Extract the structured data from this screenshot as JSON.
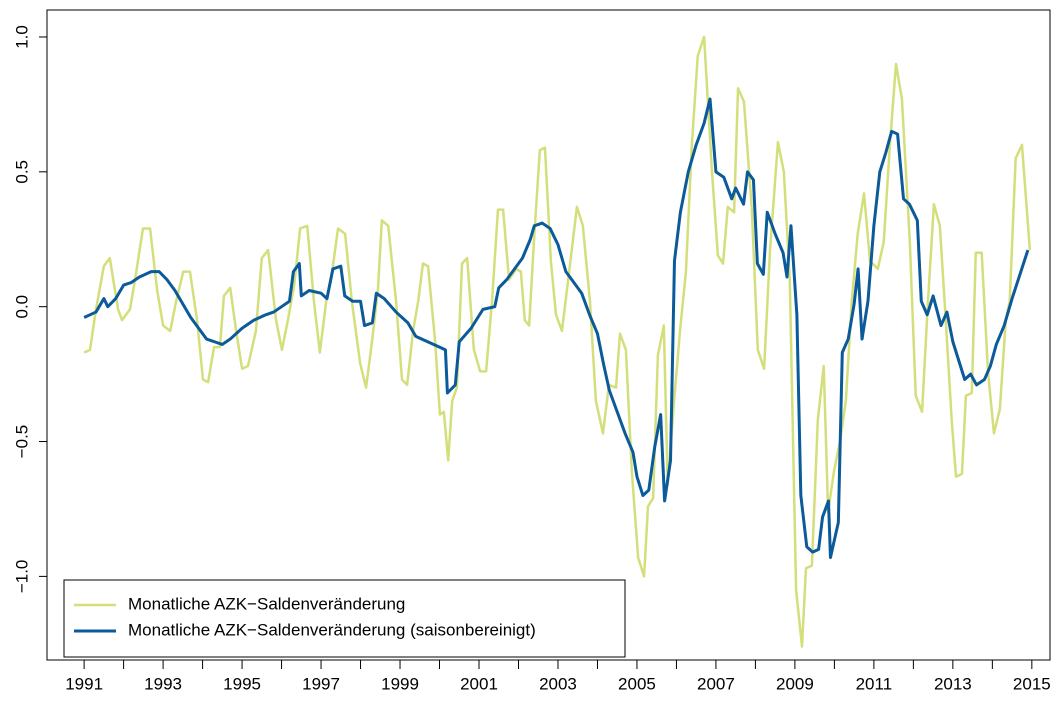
{
  "chart_data": {
    "type": "line",
    "xlim": [
      1990.06,
      2015.46
    ],
    "ylim": [
      -1.31,
      1.1
    ],
    "xticks": [
      1991,
      1993,
      1995,
      1997,
      1999,
      2001,
      2003,
      2005,
      2007,
      2009,
      2011,
      2013,
      2015
    ],
    "x_minor_ticks": [
      1992,
      1994,
      1996,
      1998,
      2000,
      2002,
      2004,
      2006,
      2008,
      2010,
      2012,
      2014
    ],
    "yticks": [
      {
        "value": -1,
        "label": "−1.0"
      },
      {
        "value": -0.5,
        "label": "−0.5"
      },
      {
        "value": 0,
        "label": "0.0"
      },
      {
        "value": 0.5,
        "label": "0.5"
      },
      {
        "value": 1,
        "label": "1.0"
      }
    ],
    "grid": false,
    "legend": "bottomleft",
    "series": [
      {
        "name": "Monatliche AZK−Saldenveränderung",
        "color": "#d4df7c",
        "x": [
          1991.0,
          1991.15,
          1991.3,
          1991.5,
          1991.65,
          1991.86,
          1991.96,
          1992.16,
          1992.29,
          1992.49,
          1992.67,
          1992.85,
          1993.0,
          1993.18,
          1993.33,
          1993.51,
          1993.68,
          1993.86,
          1994.01,
          1994.14,
          1994.29,
          1994.44,
          1994.54,
          1994.7,
          1994.85,
          1995.0,
          1995.15,
          1995.35,
          1995.5,
          1995.66,
          1995.86,
          1996.01,
          1996.16,
          1996.32,
          1996.47,
          1996.65,
          1996.82,
          1996.97,
          1997.13,
          1997.28,
          1997.43,
          1997.61,
          1997.78,
          1997.99,
          1998.14,
          1998.29,
          1998.44,
          1998.54,
          1998.7,
          1998.9,
          1999.05,
          1999.18,
          1999.33,
          1999.46,
          1999.58,
          1999.71,
          1999.89,
          2000.01,
          2000.11,
          2000.22,
          2000.32,
          2000.44,
          2000.57,
          2000.7,
          2000.87,
          2001.03,
          2001.18,
          2001.33,
          2001.48,
          2001.61,
          2001.76,
          2001.94,
          2002.06,
          2002.16,
          2002.27,
          2002.39,
          2002.54,
          2002.67,
          2002.82,
          2002.95,
          2003.1,
          2003.25,
          2003.48,
          2003.63,
          2003.81,
          2003.96,
          2004.14,
          2004.29,
          2004.47,
          2004.57,
          2004.72,
          2004.87,
          2005.03,
          2005.18,
          2005.28,
          2005.41,
          2005.53,
          2005.68,
          2005.78,
          2005.94,
          2006.09,
          2006.24,
          2006.39,
          2006.54,
          2006.7,
          2006.9,
          2007.05,
          2007.18,
          2007.3,
          2007.46,
          2007.56,
          2007.71,
          2007.91,
          2008.06,
          2008.22,
          2008.37,
          2008.57,
          2008.72,
          2008.87,
          2009.03,
          2009.18,
          2009.28,
          2009.43,
          2009.58,
          2009.73,
          2009.84,
          2009.99,
          2010.14,
          2010.29,
          2010.44,
          2010.59,
          2010.75,
          2010.9,
          2011.1,
          2011.25,
          2011.41,
          2011.56,
          2011.71,
          2011.91,
          2012.06,
          2012.22,
          2012.37,
          2012.52,
          2012.67,
          2012.82,
          2012.97,
          2013.08,
          2013.23,
          2013.33,
          2013.48,
          2013.58,
          2013.73,
          2013.89,
          2014.04,
          2014.19,
          2014.34,
          2014.44,
          2014.59,
          2014.75,
          2014.95
        ],
        "values": [
          -0.17,
          -0.16,
          -0.01,
          0.15,
          0.18,
          -0.01,
          -0.05,
          -0.01,
          0.1,
          0.29,
          0.29,
          0.06,
          -0.07,
          -0.09,
          0.02,
          0.13,
          0.13,
          -0.05,
          -0.27,
          -0.28,
          -0.15,
          -0.15,
          0.04,
          0.07,
          -0.09,
          -0.23,
          -0.22,
          -0.09,
          0.18,
          0.21,
          -0.05,
          -0.16,
          -0.05,
          0.08,
          0.29,
          0.3,
          0.02,
          -0.17,
          0.02,
          0.13,
          0.29,
          0.27,
          0.02,
          -0.21,
          -0.3,
          -0.13,
          0.06,
          0.32,
          0.3,
          0.02,
          -0.27,
          -0.29,
          -0.09,
          0.02,
          0.16,
          0.15,
          -0.13,
          -0.4,
          -0.39,
          -0.57,
          -0.35,
          -0.3,
          0.16,
          0.18,
          -0.16,
          -0.24,
          -0.24,
          0.02,
          0.36,
          0.36,
          0.1,
          0.14,
          0.13,
          -0.05,
          -0.07,
          0.24,
          0.58,
          0.59,
          0.17,
          -0.03,
          -0.09,
          0.09,
          0.37,
          0.3,
          0.02,
          -0.35,
          -0.47,
          -0.29,
          -0.3,
          -0.1,
          -0.16,
          -0.61,
          -0.93,
          -1.0,
          -0.74,
          -0.71,
          -0.18,
          -0.07,
          -0.66,
          -0.35,
          -0.09,
          0.13,
          0.6,
          0.93,
          1.0,
          0.5,
          0.19,
          0.16,
          0.37,
          0.35,
          0.81,
          0.76,
          0.36,
          -0.16,
          -0.23,
          0.21,
          0.61,
          0.5,
          0.1,
          -1.05,
          -1.26,
          -0.97,
          -0.96,
          -0.42,
          -0.22,
          -0.76,
          -0.61,
          -0.5,
          -0.35,
          0.02,
          0.27,
          0.42,
          0.17,
          0.14,
          0.24,
          0.61,
          0.9,
          0.77,
          0.24,
          -0.33,
          -0.39,
          0.02,
          0.38,
          0.3,
          -0.05,
          -0.42,
          -0.63,
          -0.62,
          -0.33,
          -0.32,
          0.2,
          0.2,
          -0.24,
          -0.47,
          -0.38,
          -0.05,
          0.02,
          0.55,
          0.6,
          0.21
        ]
      },
      {
        "name": "Monatliche AZK−Saldenveränderung (saisonbereinigt)",
        "color": "#0b5a9a",
        "x": [
          1991.0,
          1991.3,
          1991.5,
          1991.6,
          1991.8,
          1992.0,
          1992.2,
          1992.4,
          1992.7,
          1992.9,
          1993.1,
          1993.3,
          1993.5,
          1993.7,
          1993.9,
          1994.1,
          1994.3,
          1994.5,
          1994.7,
          1995.0,
          1995.3,
          1995.6,
          1995.8,
          1996.0,
          1996.2,
          1996.3,
          1996.45,
          1996.5,
          1996.7,
          1997.0,
          1997.15,
          1997.3,
          1997.5,
          1997.6,
          1997.8,
          1998.0,
          1998.1,
          1998.3,
          1998.4,
          1998.6,
          1998.9,
          1999.2,
          1999.4,
          1999.7,
          2000.0,
          2000.15,
          2000.2,
          2000.4,
          2000.5,
          2000.8,
          2001.1,
          2001.4,
          2001.5,
          2001.7,
          2002.0,
          2002.1,
          2002.3,
          2002.4,
          2002.6,
          2002.8,
          2003.0,
          2003.2,
          2003.4,
          2003.6,
          2003.8,
          2004.0,
          2004.15,
          2004.3,
          2004.5,
          2004.7,
          2004.9,
          2005.0,
          2005.15,
          2005.3,
          2005.45,
          2005.6,
          2005.7,
          2005.85,
          2005.95,
          2006.1,
          2006.3,
          2006.5,
          2006.7,
          2006.85,
          2007.0,
          2007.2,
          2007.4,
          2007.5,
          2007.7,
          2007.8,
          2007.95,
          2008.05,
          2008.2,
          2008.3,
          2008.5,
          2008.7,
          2008.8,
          2008.9,
          2009.05,
          2009.15,
          2009.3,
          2009.45,
          2009.6,
          2009.7,
          2009.85,
          2009.9,
          2010.1,
          2010.2,
          2010.35,
          2010.5,
          2010.6,
          2010.7,
          2010.85,
          2011.0,
          2011.15,
          2011.3,
          2011.45,
          2011.6,
          2011.75,
          2011.9,
          2012.1,
          2012.2,
          2012.35,
          2012.5,
          2012.7,
          2012.85,
          2013.0,
          2013.15,
          2013.3,
          2013.45,
          2013.6,
          2013.8,
          2013.95,
          2014.1,
          2014.3,
          2014.5,
          2014.7,
          2014.9
        ],
        "values": [
          -0.04,
          -0.02,
          0.03,
          0.0,
          0.03,
          0.08,
          0.09,
          0.11,
          0.13,
          0.13,
          0.1,
          0.06,
          0.01,
          -0.04,
          -0.08,
          -0.12,
          -0.13,
          -0.14,
          -0.12,
          -0.08,
          -0.05,
          -0.03,
          -0.02,
          0.0,
          0.02,
          0.13,
          0.16,
          0.04,
          0.06,
          0.05,
          0.03,
          0.14,
          0.15,
          0.04,
          0.02,
          0.02,
          -0.07,
          -0.06,
          0.05,
          0.03,
          -0.02,
          -0.06,
          -0.11,
          -0.13,
          -0.15,
          -0.16,
          -0.32,
          -0.29,
          -0.13,
          -0.08,
          -0.01,
          0.0,
          0.07,
          0.1,
          0.16,
          0.18,
          0.25,
          0.3,
          0.31,
          0.29,
          0.23,
          0.13,
          0.09,
          0.05,
          -0.03,
          -0.1,
          -0.21,
          -0.31,
          -0.39,
          -0.47,
          -0.54,
          -0.63,
          -0.7,
          -0.68,
          -0.52,
          -0.4,
          -0.72,
          -0.57,
          0.17,
          0.35,
          0.5,
          0.6,
          0.68,
          0.77,
          0.5,
          0.48,
          0.4,
          0.44,
          0.38,
          0.5,
          0.47,
          0.16,
          0.12,
          0.35,
          0.27,
          0.2,
          0.11,
          0.3,
          -0.03,
          -0.7,
          -0.89,
          -0.91,
          -0.9,
          -0.78,
          -0.72,
          -0.93,
          -0.8,
          -0.17,
          -0.12,
          0.01,
          0.14,
          -0.12,
          0.02,
          0.3,
          0.5,
          0.57,
          0.65,
          0.64,
          0.4,
          0.38,
          0.32,
          0.02,
          -0.03,
          0.04,
          -0.07,
          -0.02,
          -0.13,
          -0.2,
          -0.27,
          -0.25,
          -0.29,
          -0.27,
          -0.22,
          -0.14,
          -0.07,
          0.03,
          0.12,
          0.21
        ]
      }
    ]
  }
}
